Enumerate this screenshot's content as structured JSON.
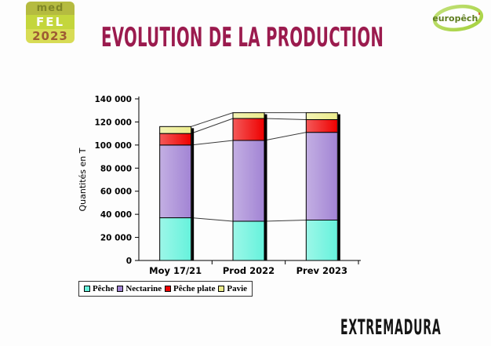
{
  "slide": {
    "title": "EVOLUTION DE LA PRODUCTION",
    "title_color": "#9B1B4E",
    "region_label": "EXTREMADURA"
  },
  "logos": {
    "medfel": {
      "line1": "med",
      "line2": "FEL",
      "line3": "2023"
    },
    "europech": {
      "text": "europêch",
      "apostrophe": "'",
      "ring_color": "#A6D23E",
      "text_color": "#5E7D1E",
      "apostrophe_color": "#E03010"
    }
  },
  "chart_data": {
    "type": "bar",
    "stacked": true,
    "categories": [
      "Moy 17/21",
      "Prod 2022",
      "Prev 2023"
    ],
    "series": [
      {
        "name": "Pêche",
        "color": "#66F2DC",
        "values": [
          37000,
          34000,
          35000
        ]
      },
      {
        "name": "Nectarine",
        "color": "#A284D4",
        "values": [
          63000,
          70000,
          76000
        ]
      },
      {
        "name": "Pêche plate",
        "color": "#EE0000",
        "values": [
          10000,
          19000,
          11000
        ]
      },
      {
        "name": "Pavie",
        "color": "#ECEC8B",
        "values": [
          6000,
          5000,
          6000
        ]
      }
    ],
    "totals": [
      116000,
      128000,
      128000
    ],
    "title": "",
    "xlabel": "",
    "ylabel": "Quantités en T",
    "ylim": [
      0,
      140000
    ],
    "ytick_step": 20000,
    "grid": false,
    "series_lines": true,
    "legend_position": "bottom"
  }
}
